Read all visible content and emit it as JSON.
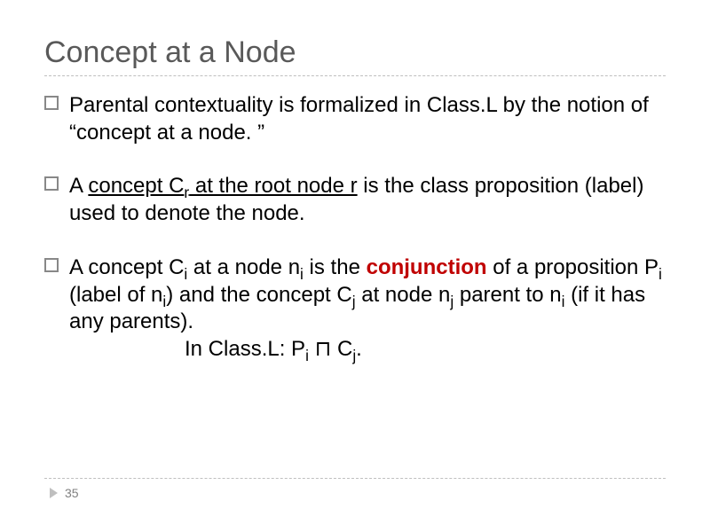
{
  "title": "Concept at a Node",
  "colors": {
    "title": "#595959",
    "text": "#000000",
    "accent_red": "#c00000",
    "rule": "#bfbfbf",
    "bullet_border": "#888888",
    "pagenum": "#808080",
    "background": "#ffffff"
  },
  "typography": {
    "title_fontsize_pt": 26,
    "body_fontsize_pt": 18,
    "pagenum_fontsize_pt": 11,
    "font_family": "Arial"
  },
  "bullets": {
    "b1": {
      "t1": "Parental contextuality is formalized in Class.L by the notion of “concept at a node. ”"
    },
    "b2": {
      "t1": "A ",
      "u1": "concept C",
      "u1_sub": "r",
      "u2": " at the root node r",
      "t2": " is the class proposition (label) used to denote the node."
    },
    "b3": {
      "t1": "A concept C",
      "s1": "i",
      "t2": " at a node n",
      "s2": "i",
      "t3": " is the ",
      "bold_red": "conjunction",
      "t4": " of a proposition P",
      "s3": "i",
      "t5": " (label of n",
      "s4": "i",
      "t6": ") and the concept C",
      "s5": "j",
      "t7": " at node n",
      "s6": "j",
      "t8": " parent to n",
      "s7": "i",
      "t9": " (if it has any parents).",
      "line2_a": "In Class.L: P",
      "line2_s1": "i",
      "line2_b": " ⊓ C",
      "line2_s2": "j",
      "line2_c": "."
    }
  },
  "page_number": "35"
}
